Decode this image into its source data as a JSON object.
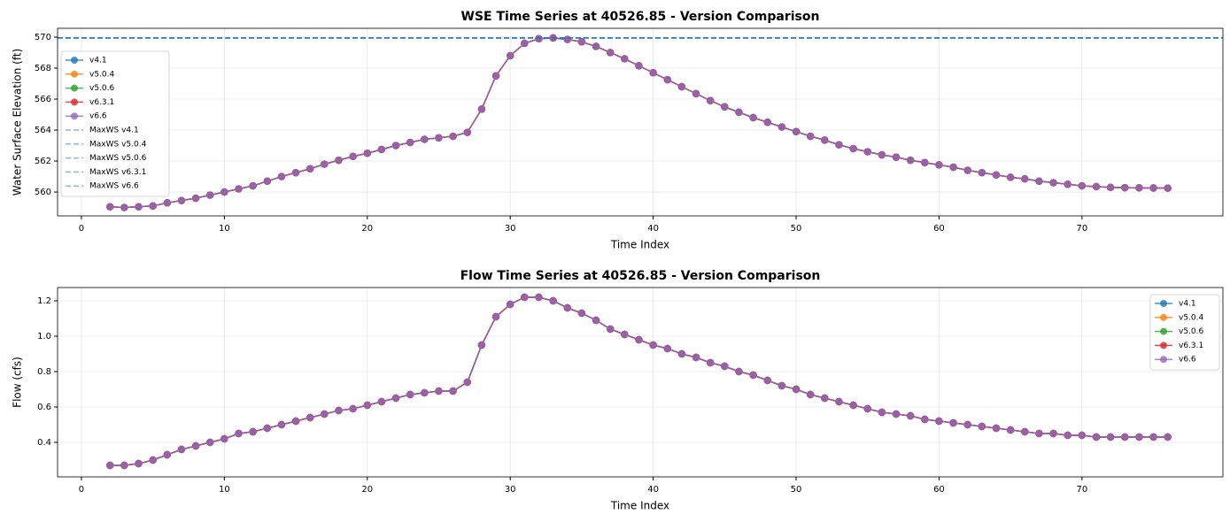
{
  "chart_data": [
    {
      "type": "line",
      "title": "WSE Time Series at 40526.85 - Version Comparison",
      "x_label": "Time Index",
      "y_label": "Water Surface Elevation (ft)",
      "xlim": [
        -1.67,
        79.86
      ],
      "xticks": [
        0,
        10,
        20,
        30,
        40,
        50,
        60,
        70
      ],
      "ylim": [
        558.46,
        570.57
      ],
      "yticks": [
        560,
        562,
        564,
        566,
        568,
        570
      ],
      "grid": true,
      "legend": "upper left",
      "x": [
        2,
        3,
        4,
        5,
        6,
        7,
        8,
        9,
        10,
        11,
        12,
        13,
        14,
        15,
        16,
        17,
        18,
        19,
        20,
        21,
        22,
        23,
        24,
        25,
        26,
        27,
        28,
        29,
        30,
        31,
        32,
        33,
        34,
        35,
        36,
        37,
        38,
        39,
        40,
        41,
        42,
        43,
        44,
        45,
        46,
        47,
        48,
        49,
        50,
        51,
        52,
        53,
        54,
        55,
        56,
        57,
        58,
        59,
        60,
        61,
        62,
        63,
        64,
        65,
        66,
        67,
        68,
        69,
        70,
        71,
        72,
        73,
        74,
        75,
        76
      ],
      "series": [
        {
          "name": "v4.1",
          "color": "#1f77b4",
          "values": [
            559.05,
            559.0,
            559.05,
            559.1,
            559.3,
            559.45,
            559.6,
            559.8,
            560.0,
            560.2,
            560.4,
            560.7,
            561.0,
            561.25,
            561.5,
            561.8,
            562.05,
            562.3,
            562.5,
            562.75,
            563.0,
            563.2,
            563.4,
            563.5,
            563.6,
            563.85,
            565.35,
            567.5,
            568.8,
            569.6,
            569.9,
            569.95,
            569.85,
            569.7,
            569.4,
            569.0,
            568.6,
            568.15,
            567.7,
            567.25,
            566.8,
            566.35,
            565.9,
            565.5,
            565.15,
            564.8,
            564.5,
            564.2,
            563.9,
            563.6,
            563.35,
            563.05,
            562.8,
            562.6,
            562.4,
            562.25,
            562.05,
            561.9,
            561.75,
            561.6,
            561.4,
            561.25,
            561.1,
            560.95,
            560.85,
            560.7,
            560.6,
            560.5,
            560.4,
            560.35,
            560.3,
            560.28,
            560.27,
            560.26,
            560.25
          ]
        },
        {
          "name": "v5.0.4",
          "color": "#ff7f0e",
          "values": [
            559.05,
            559.0,
            559.05,
            559.1,
            559.3,
            559.45,
            559.6,
            559.8,
            560.0,
            560.2,
            560.4,
            560.7,
            561.0,
            561.25,
            561.5,
            561.8,
            562.05,
            562.3,
            562.5,
            562.75,
            563.0,
            563.2,
            563.4,
            563.5,
            563.6,
            563.85,
            565.35,
            567.5,
            568.8,
            569.6,
            569.9,
            569.95,
            569.85,
            569.7,
            569.4,
            569.0,
            568.6,
            568.15,
            567.7,
            567.25,
            566.8,
            566.35,
            565.9,
            565.5,
            565.15,
            564.8,
            564.5,
            564.2,
            563.9,
            563.6,
            563.35,
            563.05,
            562.8,
            562.6,
            562.4,
            562.25,
            562.05,
            561.9,
            561.75,
            561.6,
            561.4,
            561.25,
            561.1,
            560.95,
            560.85,
            560.7,
            560.6,
            560.5,
            560.4,
            560.35,
            560.3,
            560.28,
            560.27,
            560.26,
            560.25
          ]
        },
        {
          "name": "v5.0.6",
          "color": "#2ca02c",
          "values": [
            559.05,
            559.0,
            559.05,
            559.1,
            559.3,
            559.45,
            559.6,
            559.8,
            560.0,
            560.2,
            560.4,
            560.7,
            561.0,
            561.25,
            561.5,
            561.8,
            562.05,
            562.3,
            562.5,
            562.75,
            563.0,
            563.2,
            563.4,
            563.5,
            563.6,
            563.85,
            565.35,
            567.5,
            568.8,
            569.6,
            569.9,
            569.95,
            569.85,
            569.7,
            569.4,
            569.0,
            568.6,
            568.15,
            567.7,
            567.25,
            566.8,
            566.35,
            565.9,
            565.5,
            565.15,
            564.8,
            564.5,
            564.2,
            563.9,
            563.6,
            563.35,
            563.05,
            562.8,
            562.6,
            562.4,
            562.25,
            562.05,
            561.9,
            561.75,
            561.6,
            561.4,
            561.25,
            561.1,
            560.95,
            560.85,
            560.7,
            560.6,
            560.5,
            560.4,
            560.35,
            560.3,
            560.28,
            560.27,
            560.26,
            560.25
          ]
        },
        {
          "name": "v6.3.1",
          "color": "#d62728",
          "values": [
            559.05,
            559.0,
            559.05,
            559.1,
            559.3,
            559.45,
            559.6,
            559.8,
            560.0,
            560.2,
            560.4,
            560.7,
            561.0,
            561.25,
            561.5,
            561.8,
            562.05,
            562.3,
            562.5,
            562.75,
            563.0,
            563.2,
            563.4,
            563.5,
            563.6,
            563.85,
            565.35,
            567.5,
            568.8,
            569.6,
            569.9,
            569.95,
            569.85,
            569.7,
            569.4,
            569.0,
            568.6,
            568.15,
            567.7,
            567.25,
            566.8,
            566.35,
            565.9,
            565.5,
            565.15,
            564.8,
            564.5,
            564.2,
            563.9,
            563.6,
            563.35,
            563.05,
            562.8,
            562.6,
            562.4,
            562.25,
            562.05,
            561.9,
            561.75,
            561.6,
            561.4,
            561.25,
            561.1,
            560.95,
            560.85,
            560.7,
            560.6,
            560.5,
            560.4,
            560.35,
            560.3,
            560.28,
            560.27,
            560.26,
            560.25
          ]
        },
        {
          "name": "v6.6",
          "color": "#9467bd",
          "values": [
            559.05,
            559.0,
            559.05,
            559.1,
            559.3,
            559.45,
            559.6,
            559.8,
            560.0,
            560.2,
            560.4,
            560.7,
            561.0,
            561.25,
            561.5,
            561.8,
            562.05,
            562.3,
            562.5,
            562.75,
            563.0,
            563.2,
            563.4,
            563.5,
            563.6,
            563.85,
            565.35,
            567.5,
            568.8,
            569.6,
            569.9,
            569.95,
            569.85,
            569.7,
            569.4,
            569.0,
            568.6,
            568.15,
            567.7,
            567.25,
            566.8,
            566.35,
            565.9,
            565.5,
            565.15,
            564.8,
            564.5,
            564.2,
            563.9,
            563.6,
            563.35,
            563.05,
            562.8,
            562.6,
            562.4,
            562.25,
            562.05,
            561.9,
            561.75,
            561.6,
            561.4,
            561.25,
            561.1,
            560.95,
            560.85,
            560.7,
            560.6,
            560.5,
            560.4,
            560.35,
            560.3,
            560.28,
            560.27,
            560.26,
            560.25
          ]
        }
      ],
      "hlines": [
        {
          "name": "MaxWS v4.1",
          "value": 569.95,
          "color": "#1f77b4"
        },
        {
          "name": "MaxWS v5.0.4",
          "value": 569.95,
          "color": "#1f77b4"
        },
        {
          "name": "MaxWS v5.0.6",
          "value": 569.95,
          "color": "#1f77b4"
        },
        {
          "name": "MaxWS v6.3.1",
          "value": 569.95,
          "color": "#1f77b4"
        },
        {
          "name": "MaxWS v6.6",
          "value": 569.95,
          "color": "#1f77b4"
        }
      ]
    },
    {
      "type": "line",
      "title": "Flow Time Series at 40526.85 - Version Comparison",
      "x_label": "Time Index",
      "y_label": "Flow (cfs)",
      "xlim": [
        -1.67,
        79.86
      ],
      "xticks": [
        0,
        10,
        20,
        30,
        40,
        50,
        60,
        70
      ],
      "ylim": [
        0.205,
        1.275
      ],
      "yticks": [
        0.4,
        0.6,
        0.8,
        {
          "value": 1,
          "label": "1.0"
        },
        1.2
      ],
      "grid": true,
      "legend": "upper right",
      "x": [
        2,
        3,
        4,
        5,
        6,
        7,
        8,
        9,
        10,
        11,
        12,
        13,
        14,
        15,
        16,
        17,
        18,
        19,
        20,
        21,
        22,
        23,
        24,
        25,
        26,
        27,
        28,
        29,
        30,
        31,
        32,
        33,
        34,
        35,
        36,
        37,
        38,
        39,
        40,
        41,
        42,
        43,
        44,
        45,
        46,
        47,
        48,
        49,
        50,
        51,
        52,
        53,
        54,
        55,
        56,
        57,
        58,
        59,
        60,
        61,
        62,
        63,
        64,
        65,
        66,
        67,
        68,
        69,
        70,
        71,
        72,
        73,
        74,
        75,
        76
      ],
      "series": [
        {
          "name": "v4.1",
          "color": "#1f77b4",
          "values": [
            0.27,
            0.27,
            0.28,
            0.3,
            0.33,
            0.36,
            0.38,
            0.4,
            0.42,
            0.45,
            0.46,
            0.48,
            0.5,
            0.52,
            0.54,
            0.56,
            0.58,
            0.59,
            0.61,
            0.63,
            0.65,
            0.67,
            0.68,
            0.69,
            0.69,
            0.74,
            0.95,
            1.11,
            1.18,
            1.22,
            1.22,
            1.2,
            1.16,
            1.13,
            1.09,
            1.04,
            1.01,
            0.98,
            0.95,
            0.93,
            0.9,
            0.88,
            0.85,
            0.83,
            0.8,
            0.78,
            0.75,
            0.72,
            0.7,
            0.67,
            0.65,
            0.63,
            0.61,
            0.59,
            0.57,
            0.56,
            0.55,
            0.53,
            0.52,
            0.51,
            0.5,
            0.49,
            0.48,
            0.47,
            0.46,
            0.45,
            0.45,
            0.44,
            0.44,
            0.43,
            0.43,
            0.43,
            0.43,
            0.43,
            0.43
          ]
        },
        {
          "name": "v5.0.4",
          "color": "#ff7f0e",
          "values": [
            0.27,
            0.27,
            0.28,
            0.3,
            0.33,
            0.36,
            0.38,
            0.4,
            0.42,
            0.45,
            0.46,
            0.48,
            0.5,
            0.52,
            0.54,
            0.56,
            0.58,
            0.59,
            0.61,
            0.63,
            0.65,
            0.67,
            0.68,
            0.69,
            0.69,
            0.74,
            0.95,
            1.11,
            1.18,
            1.22,
            1.22,
            1.2,
            1.16,
            1.13,
            1.09,
            1.04,
            1.01,
            0.98,
            0.95,
            0.93,
            0.9,
            0.88,
            0.85,
            0.83,
            0.8,
            0.78,
            0.75,
            0.72,
            0.7,
            0.67,
            0.65,
            0.63,
            0.61,
            0.59,
            0.57,
            0.56,
            0.55,
            0.53,
            0.52,
            0.51,
            0.5,
            0.49,
            0.48,
            0.47,
            0.46,
            0.45,
            0.45,
            0.44,
            0.44,
            0.43,
            0.43,
            0.43,
            0.43,
            0.43,
            0.43
          ]
        },
        {
          "name": "v5.0.6",
          "color": "#2ca02c",
          "values": [
            0.27,
            0.27,
            0.28,
            0.3,
            0.33,
            0.36,
            0.38,
            0.4,
            0.42,
            0.45,
            0.46,
            0.48,
            0.5,
            0.52,
            0.54,
            0.56,
            0.58,
            0.59,
            0.61,
            0.63,
            0.65,
            0.67,
            0.68,
            0.69,
            0.69,
            0.74,
            0.95,
            1.11,
            1.18,
            1.22,
            1.22,
            1.2,
            1.16,
            1.13,
            1.09,
            1.04,
            1.01,
            0.98,
            0.95,
            0.93,
            0.9,
            0.88,
            0.85,
            0.83,
            0.8,
            0.78,
            0.75,
            0.72,
            0.7,
            0.67,
            0.65,
            0.63,
            0.61,
            0.59,
            0.57,
            0.56,
            0.55,
            0.53,
            0.52,
            0.51,
            0.5,
            0.49,
            0.48,
            0.47,
            0.46,
            0.45,
            0.45,
            0.44,
            0.44,
            0.43,
            0.43,
            0.43,
            0.43,
            0.43,
            0.43
          ]
        },
        {
          "name": "v6.3.1",
          "color": "#d62728",
          "values": [
            0.27,
            0.27,
            0.28,
            0.3,
            0.33,
            0.36,
            0.38,
            0.4,
            0.42,
            0.45,
            0.46,
            0.48,
            0.5,
            0.52,
            0.54,
            0.56,
            0.58,
            0.59,
            0.61,
            0.63,
            0.65,
            0.67,
            0.68,
            0.69,
            0.69,
            0.74,
            0.95,
            1.11,
            1.18,
            1.22,
            1.22,
            1.2,
            1.16,
            1.13,
            1.09,
            1.04,
            1.01,
            0.98,
            0.95,
            0.93,
            0.9,
            0.88,
            0.85,
            0.83,
            0.8,
            0.78,
            0.75,
            0.72,
            0.7,
            0.67,
            0.65,
            0.63,
            0.61,
            0.59,
            0.57,
            0.56,
            0.55,
            0.53,
            0.52,
            0.51,
            0.5,
            0.49,
            0.48,
            0.47,
            0.46,
            0.45,
            0.45,
            0.44,
            0.44,
            0.43,
            0.43,
            0.43,
            0.43,
            0.43,
            0.43
          ]
        },
        {
          "name": "v6.6",
          "color": "#9467bd",
          "values": [
            0.27,
            0.27,
            0.28,
            0.3,
            0.33,
            0.36,
            0.38,
            0.4,
            0.42,
            0.45,
            0.46,
            0.48,
            0.5,
            0.52,
            0.54,
            0.56,
            0.58,
            0.59,
            0.61,
            0.63,
            0.65,
            0.67,
            0.68,
            0.69,
            0.69,
            0.74,
            0.95,
            1.11,
            1.18,
            1.22,
            1.22,
            1.2,
            1.16,
            1.13,
            1.09,
            1.04,
            1.01,
            0.98,
            0.95,
            0.93,
            0.9,
            0.88,
            0.85,
            0.83,
            0.8,
            0.78,
            0.75,
            0.72,
            0.7,
            0.67,
            0.65,
            0.63,
            0.61,
            0.59,
            0.57,
            0.56,
            0.55,
            0.53,
            0.52,
            0.51,
            0.5,
            0.49,
            0.48,
            0.47,
            0.46,
            0.45,
            0.45,
            0.44,
            0.44,
            0.43,
            0.43,
            0.43,
            0.43,
            0.43,
            0.43
          ]
        }
      ]
    }
  ]
}
